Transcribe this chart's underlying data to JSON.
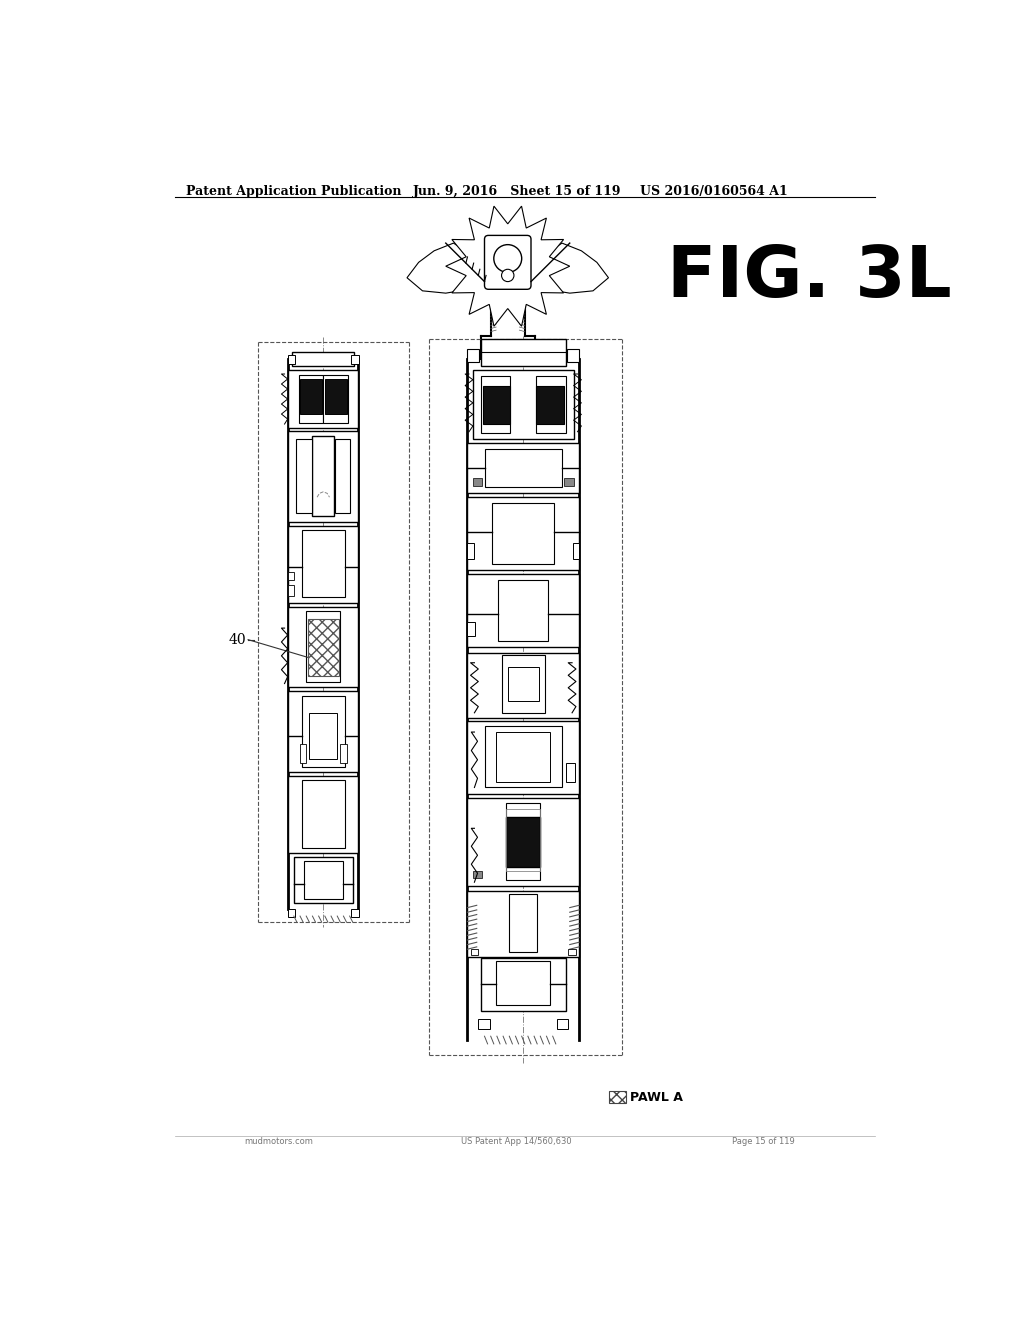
{
  "header_left": "Patent Application Publication",
  "header_mid": "Jun. 9, 2016   Sheet 15 of 119",
  "header_right": "US 2016/0160564 A1",
  "fig_label": "FIG. 3L",
  "component_label": "40",
  "legend_label": "PAWL A",
  "background": "#ffffff",
  "line_color": "#000000",
  "gray_line": "#888888",
  "light_gray": "#cccccc",
  "dark_fill": "#1a1a1a",
  "hatch_color": "#555555"
}
